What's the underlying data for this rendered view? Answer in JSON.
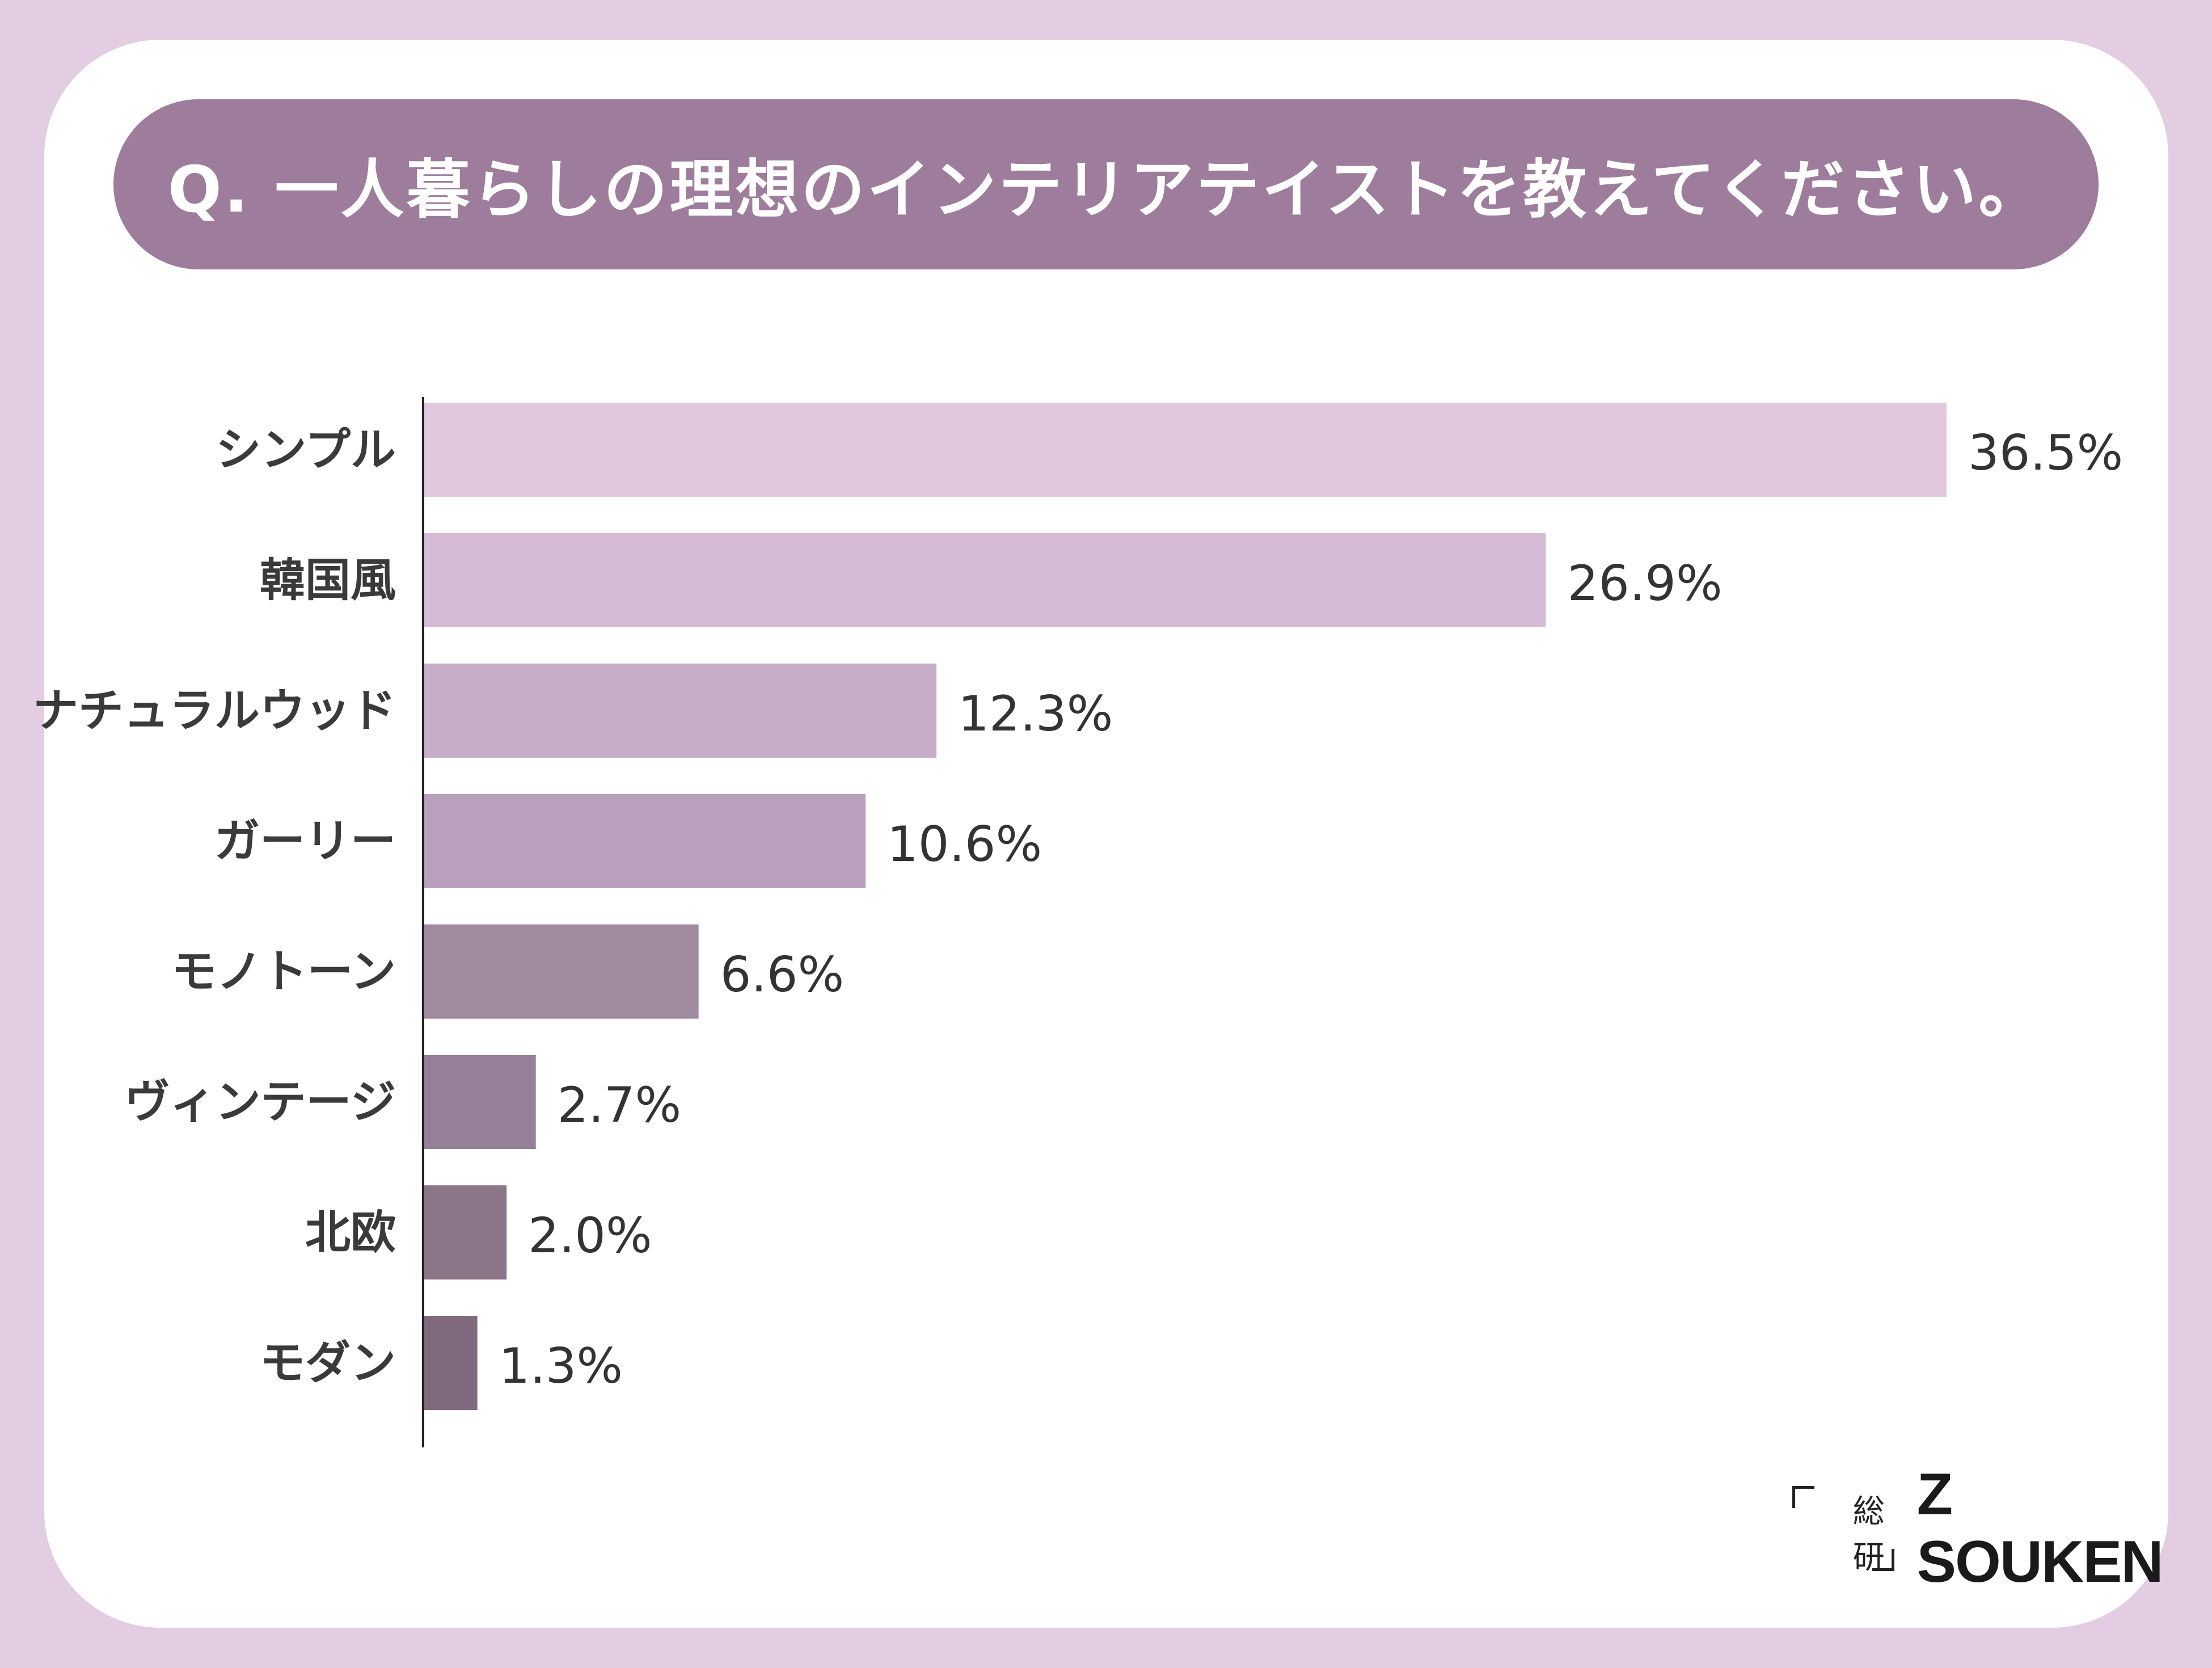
{
  "title": "Q. 一人暮らしの理想のインテリアテイストを教えてください。",
  "chart_data": {
    "type": "bar",
    "orientation": "horizontal",
    "title": "Q. 一人暮らしの理想のインテリアテイストを教えてください。",
    "categories": [
      "シンプル",
      "韓国風",
      "ナチュラルウッド",
      "ガーリー",
      "モノトーン",
      "ヴィンテージ",
      "北欧",
      "モダン"
    ],
    "values": [
      36.5,
      26.9,
      12.3,
      10.6,
      6.6,
      2.7,
      2.0,
      1.3
    ],
    "value_labels": [
      "36.5%",
      "26.9%",
      "12.3%",
      "10.6%",
      "6.6%",
      "2.7%",
      "2.0%",
      "1.3%"
    ],
    "bar_colors": [
      "#e0c9df",
      "#d5bcd4",
      "#c7aec8",
      "#b9a0bd",
      "#9f8a9f",
      "#958097",
      "#8b7689",
      "#7f6b7d"
    ],
    "xlim": [
      0,
      36.5
    ],
    "unit": "%",
    "grid": false,
    "legend": "none"
  },
  "logo": {
    "mark_chars": [
      "総",
      "研"
    ],
    "name": "Z SOUKEN"
  }
}
